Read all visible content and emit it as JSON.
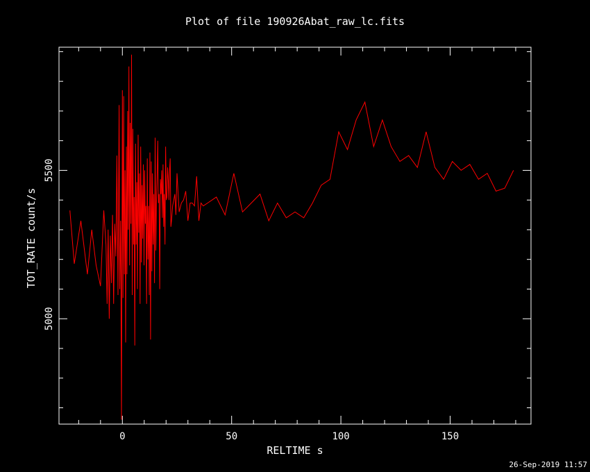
{
  "title": "Plot of file 190926Abat_raw_lc.fits",
  "xlabel": "RELTIME  s",
  "ylabel": "TOT_RATE  count/s",
  "timestamp": "26-Sep-2019 11:57",
  "chart_data": {
    "type": "line",
    "title": "Plot of file 190926Abat_raw_lc.fits",
    "xlabel": "RELTIME  s",
    "ylabel": "TOT_RATE  count/s",
    "xlim": [
      -29,
      187
    ],
    "ylim": [
      4645,
      5915
    ],
    "xticks": [
      0,
      50,
      100,
      150
    ],
    "yticks": [
      5000,
      5500
    ],
    "line_color": "#ff0000",
    "axis_color": "#ffffff",
    "background": "#000000",
    "grid": false,
    "series": [
      {
        "x": [
          -24,
          -22,
          -19,
          -16,
          -14,
          -12,
          -10,
          -8.5,
          -7.5,
          -7,
          -6.5,
          -6,
          -5.5,
          -5,
          -4.5,
          -4,
          -3.5,
          -3,
          -2.5,
          -2,
          -1.5,
          -1.2,
          -0.8,
          -0.4,
          0,
          0.3,
          0.6,
          0.9,
          1.2,
          1.5,
          1.8,
          2.1,
          2.4,
          2.7,
          3,
          3.3,
          3.6,
          3.9,
          4.2,
          4.5,
          4.8,
          5.1,
          5.4,
          5.7,
          6,
          6.3,
          6.6,
          6.9,
          7.2,
          7.5,
          7.8,
          8.1,
          8.4,
          8.7,
          9,
          9.3,
          9.6,
          9.9,
          10.2,
          10.5,
          10.8,
          11.1,
          11.4,
          11.7,
          12,
          12.3,
          12.6,
          12.9,
          13.2,
          13.5,
          13.8,
          14.1,
          14.4,
          14.7,
          15,
          15.3,
          15.6,
          15.9,
          16.2,
          16.5,
          16.8,
          17.1,
          17.4,
          17.7,
          18,
          18.3,
          18.6,
          18.9,
          19.2,
          19.5,
          19.8,
          20.1,
          20.4,
          20.7,
          21,
          21.3,
          21.6,
          21.9,
          22.2,
          22.5,
          23,
          23.5,
          24,
          24.5,
          25,
          26,
          27,
          28,
          29,
          30,
          31,
          32,
          33,
          34,
          35,
          36,
          37,
          39,
          43,
          47,
          51,
          55,
          59,
          63,
          67,
          71,
          75,
          79,
          83,
          87,
          91,
          95,
          99,
          103,
          107,
          111,
          115,
          119,
          123,
          127,
          131,
          135,
          139,
          143,
          147,
          151,
          155,
          159,
          163,
          167,
          171,
          175,
          179
        ],
        "y": [
          5365,
          5185,
          5330,
          5150,
          5300,
          5180,
          5110,
          5365,
          5250,
          5050,
          5300,
          5000,
          5280,
          5120,
          5350,
          5050,
          5320,
          5210,
          5550,
          5080,
          5720,
          5100,
          5330,
          4660,
          5770,
          5070,
          5750,
          5150,
          5500,
          4920,
          5580,
          5150,
          5700,
          5300,
          5850,
          5180,
          5660,
          5320,
          5890,
          5080,
          5640,
          5250,
          5410,
          4910,
          5590,
          5250,
          5460,
          5100,
          5620,
          5290,
          5490,
          5050,
          5580,
          5190,
          5450,
          5270,
          5520,
          5180,
          5500,
          5320,
          5380,
          5050,
          5540,
          5200,
          5380,
          5080,
          5560,
          4930,
          5530,
          5160,
          5490,
          5250,
          5420,
          5120,
          5610,
          5230,
          5390,
          5480,
          5600,
          5390,
          5420,
          5100,
          5470,
          5420,
          5500,
          5340,
          5520,
          5310,
          5420,
          5250,
          5580,
          5400,
          5410,
          5510,
          5470,
          5400,
          5500,
          5540,
          5310,
          5330,
          5380,
          5400,
          5420,
          5350,
          5490,
          5360,
          5390,
          5400,
          5430,
          5330,
          5390,
          5390,
          5380,
          5480,
          5330,
          5390,
          5380,
          5390,
          5410,
          5350,
          5490,
          5360,
          5390,
          5420,
          5330,
          5390,
          5340,
          5360,
          5340,
          5390,
          5450,
          5470,
          5630,
          5570,
          5670,
          5730,
          5580,
          5670,
          5580,
          5530,
          5550,
          5510,
          5630,
          5510,
          5470,
          5530,
          5500,
          5520,
          5470,
          5490,
          5430,
          5440,
          5500
        ]
      }
    ]
  }
}
